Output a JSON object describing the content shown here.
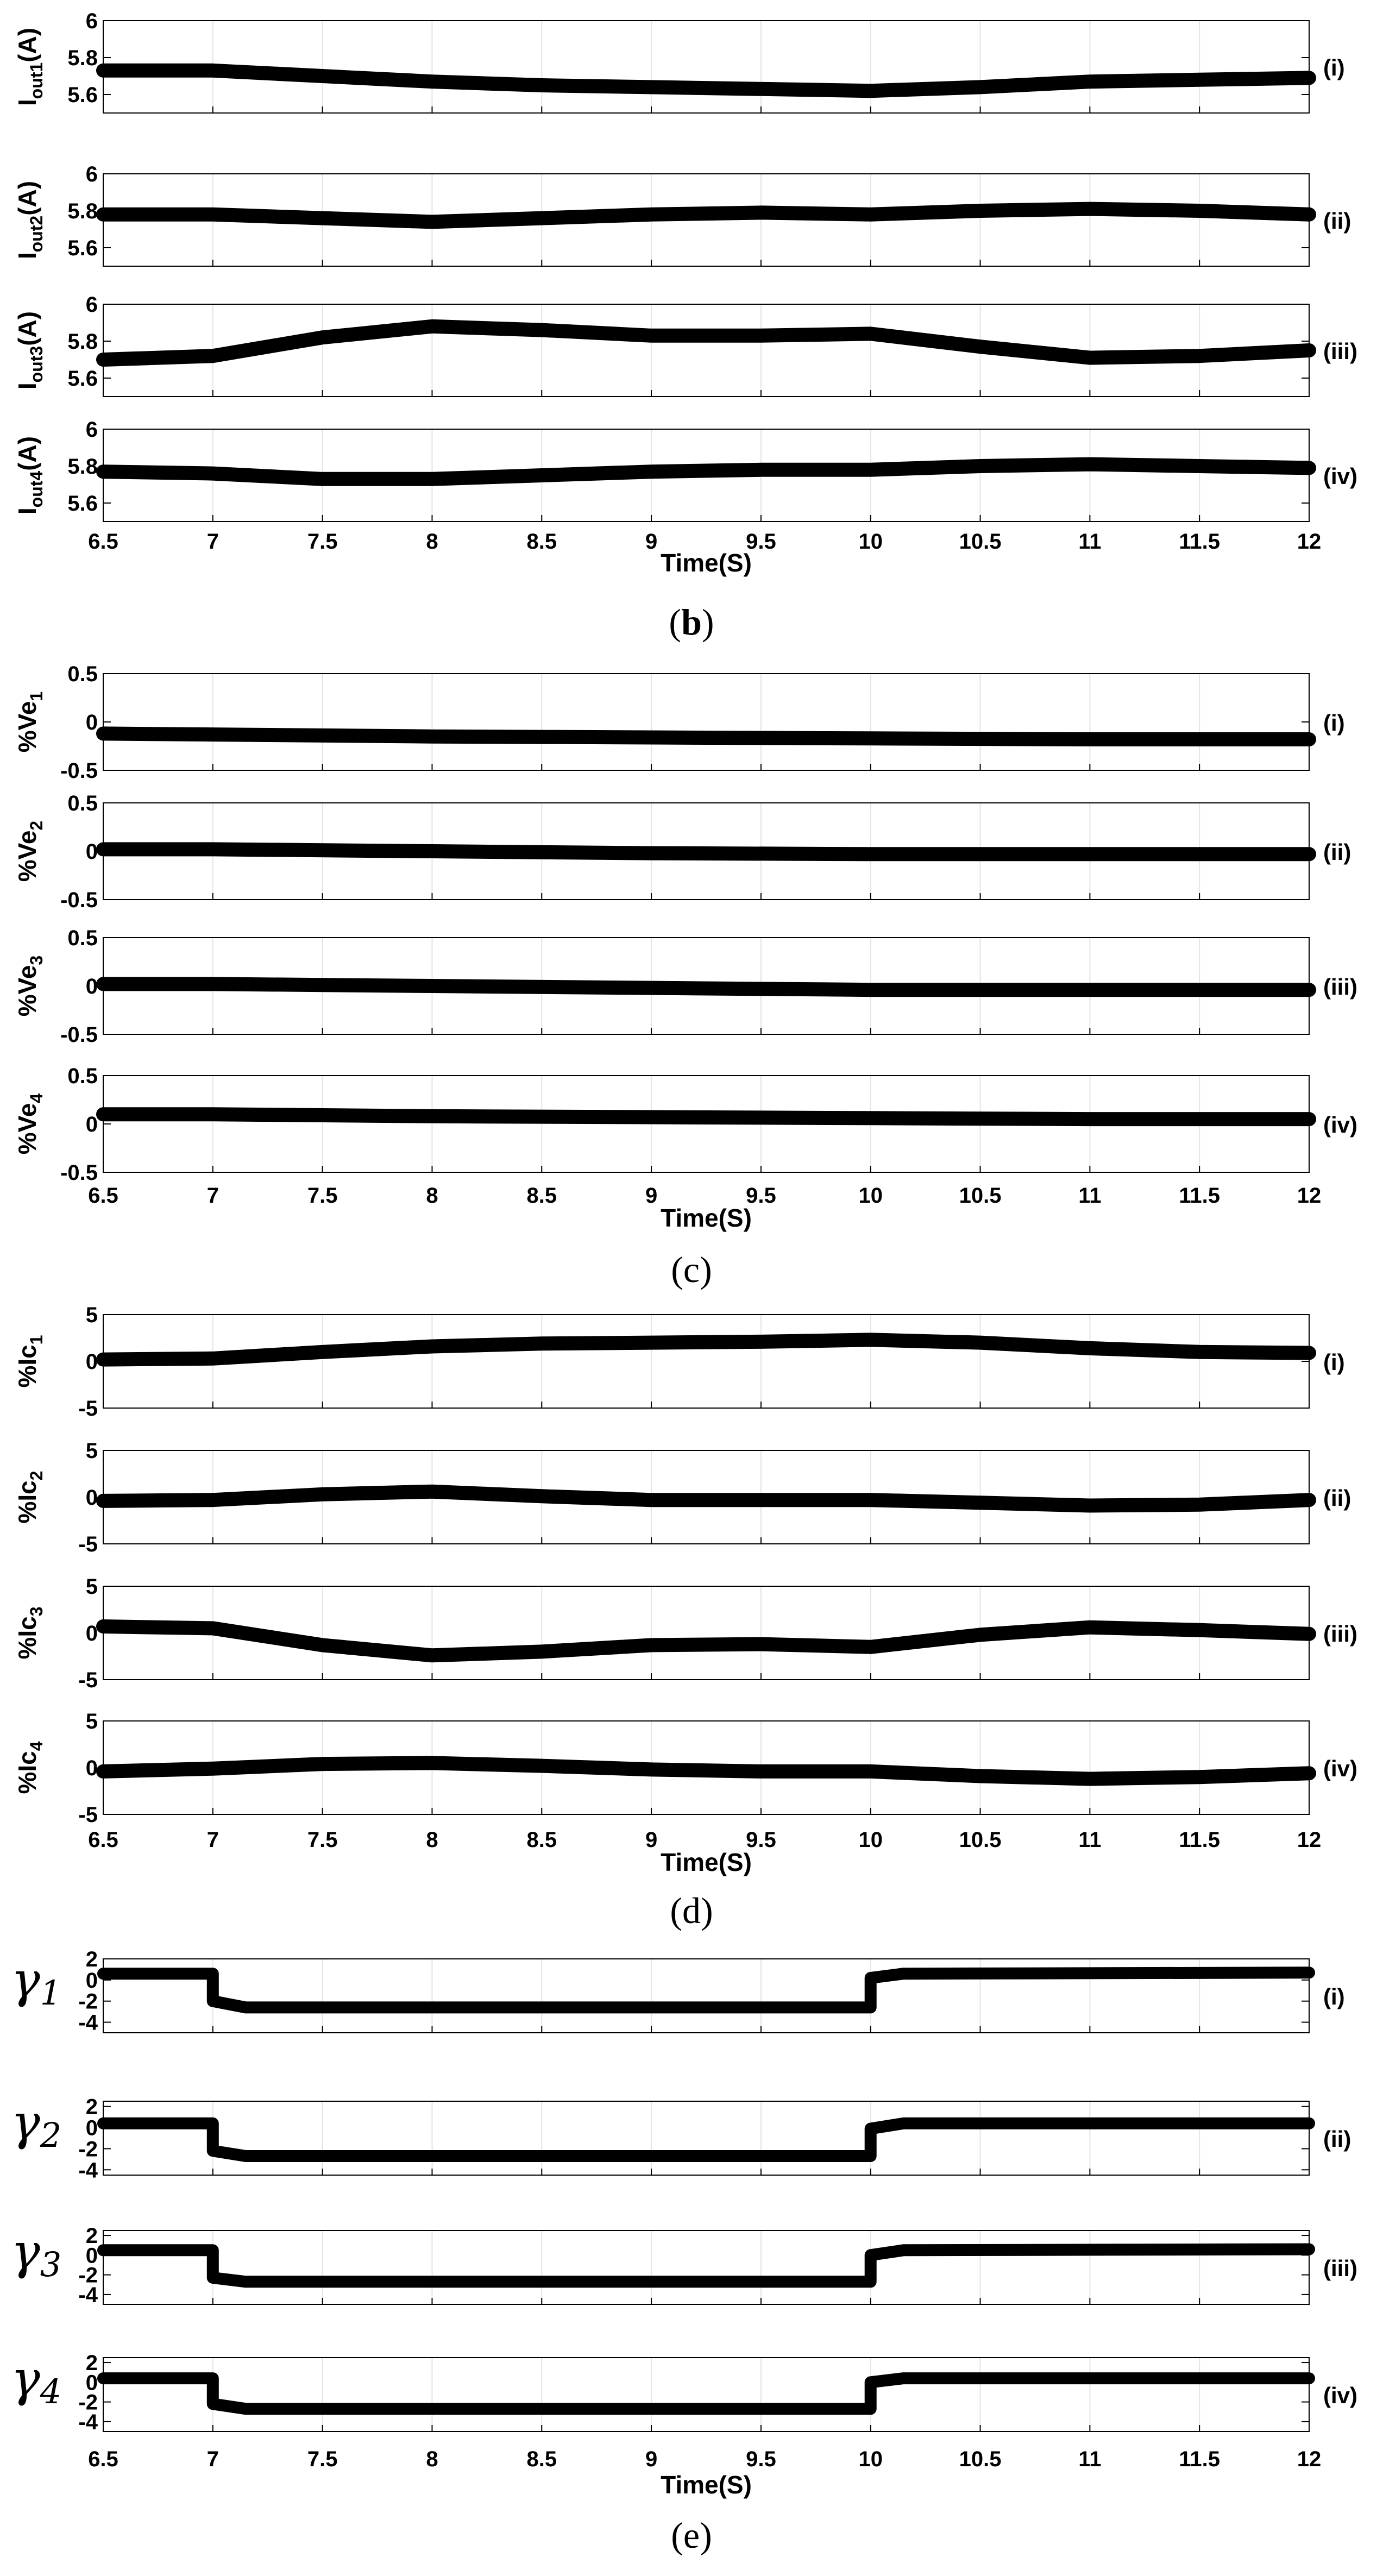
{
  "figure_groups": [
    {
      "caption_letter": "b",
      "paren_open": "(",
      "paren_close": ")"
    },
    {
      "caption_letter": "c",
      "paren_open": "(",
      "paren_close": ")"
    },
    {
      "caption_letter": "d",
      "paren_open": "(",
      "paren_close": ")"
    },
    {
      "caption_letter": "e",
      "paren_open": "(",
      "paren_close": ")"
    }
  ],
  "chart_data": [
    {
      "type": "line",
      "group": "b",
      "ylabel": "Iout1(A)",
      "ylabel_main": "I",
      "ylabel_sub": "out1",
      "ylabel_unit": "(A)",
      "ylim": [
        5.5,
        6
      ],
      "yticks": [
        "5.6",
        "5.8",
        "6"
      ],
      "panel_label": "(i)",
      "series": [
        {
          "x": [
            6.5,
            7,
            7.5,
            8,
            8.5,
            9,
            9.5,
            10,
            10.5,
            11,
            11.5,
            12
          ],
          "y": [
            5.73,
            5.73,
            5.7,
            5.67,
            5.65,
            5.64,
            5.63,
            5.62,
            5.64,
            5.67,
            5.68,
            5.69
          ]
        }
      ]
    },
    {
      "type": "line",
      "group": "b",
      "ylabel": "Iout2(A)",
      "ylabel_main": "I",
      "ylabel_sub": "out2",
      "ylabel_unit": "(A)",
      "ylim": [
        5.5,
        6
      ],
      "yticks": [
        "5.6",
        "5.8",
        "6"
      ],
      "panel_label": "(ii)",
      "series": [
        {
          "x": [
            6.5,
            7,
            7.5,
            8,
            8.5,
            9,
            9.5,
            10,
            10.5,
            11,
            11.5,
            12
          ],
          "y": [
            5.78,
            5.78,
            5.76,
            5.74,
            5.76,
            5.78,
            5.79,
            5.78,
            5.8,
            5.81,
            5.8,
            5.78
          ]
        }
      ]
    },
    {
      "type": "line",
      "group": "b",
      "ylabel": "Iout3(A)",
      "ylabel_main": "I",
      "ylabel_sub": "out3",
      "ylabel_unit": "(A)",
      "ylim": [
        5.5,
        6
      ],
      "yticks": [
        "5.6",
        "5.8",
        "6"
      ],
      "panel_label": "(iii)",
      "series": [
        {
          "x": [
            6.5,
            7,
            7.5,
            8,
            8.5,
            9,
            9.5,
            10,
            10.5,
            11,
            11.5,
            12
          ],
          "y": [
            5.7,
            5.72,
            5.82,
            5.88,
            5.86,
            5.83,
            5.83,
            5.84,
            5.77,
            5.71,
            5.72,
            5.75
          ]
        }
      ]
    },
    {
      "type": "line",
      "group": "b",
      "ylabel": "Iout4(A)",
      "ylabel_main": "I",
      "ylabel_sub": "out4",
      "ylabel_unit": "(A)",
      "ylim": [
        5.5,
        6
      ],
      "yticks": [
        "5.6",
        "5.8",
        "6"
      ],
      "panel_label": "(iv)",
      "xlabel": "Time(S)",
      "series": [
        {
          "x": [
            6.5,
            7,
            7.5,
            8,
            8.5,
            9,
            9.5,
            10,
            10.5,
            11,
            11.5,
            12
          ],
          "y": [
            5.77,
            5.76,
            5.73,
            5.73,
            5.75,
            5.77,
            5.78,
            5.78,
            5.8,
            5.81,
            5.8,
            5.79
          ]
        }
      ]
    },
    {
      "type": "line",
      "group": "c",
      "ylabel": "%Ve1",
      "ylabel_main": "%Ve",
      "ylabel_sub": "1",
      "ylim": [
        -0.5,
        0.5
      ],
      "yticks": [
        "-0.5",
        "0",
        "0.5"
      ],
      "panel_label": "(i)",
      "series": [
        {
          "x": [
            6.5,
            7,
            8,
            9,
            10,
            11,
            12
          ],
          "y": [
            -0.12,
            -0.13,
            -0.15,
            -0.16,
            -0.17,
            -0.18,
            -0.18
          ]
        }
      ]
    },
    {
      "type": "line",
      "group": "c",
      "ylabel": "%Ve2",
      "ylabel_main": "%Ve",
      "ylabel_sub": "2",
      "ylim": [
        -0.5,
        0.5
      ],
      "yticks": [
        "-0.5",
        "0",
        "0.5"
      ],
      "panel_label": "(ii)",
      "series": [
        {
          "x": [
            6.5,
            7,
            8,
            9,
            10,
            11,
            12
          ],
          "y": [
            0.02,
            0.02,
            0.0,
            -0.02,
            -0.03,
            -0.03,
            -0.03
          ]
        }
      ]
    },
    {
      "type": "line",
      "group": "c",
      "ylabel": "%Ve3",
      "ylabel_main": "%Ve",
      "ylabel_sub": "3",
      "ylim": [
        -0.5,
        0.5
      ],
      "yticks": [
        "-0.5",
        "0",
        "0.5"
      ],
      "panel_label": "(iii)",
      "series": [
        {
          "x": [
            6.5,
            7,
            8,
            9,
            10,
            11,
            12
          ],
          "y": [
            0.02,
            0.02,
            0.0,
            -0.02,
            -0.04,
            -0.04,
            -0.04
          ]
        }
      ]
    },
    {
      "type": "line",
      "group": "c",
      "ylabel": "%Ve4",
      "ylabel_main": "%Ve",
      "ylabel_sub": "4",
      "ylim": [
        -0.5,
        0.5
      ],
      "yticks": [
        "-0.5",
        "0",
        "0.5"
      ],
      "panel_label": "(iv)",
      "xlabel": "Time(S)",
      "series": [
        {
          "x": [
            6.5,
            7,
            8,
            9,
            10,
            11,
            12
          ],
          "y": [
            0.1,
            0.1,
            0.08,
            0.07,
            0.06,
            0.05,
            0.05
          ]
        }
      ]
    },
    {
      "type": "line",
      "group": "d",
      "ylabel": "%Ic1",
      "ylabel_main": "%Ic",
      "ylabel_sub": "1",
      "ylim": [
        -5,
        5
      ],
      "yticks": [
        "-5",
        "0",
        "5"
      ],
      "panel_label": "(i)",
      "series": [
        {
          "x": [
            6.5,
            7,
            7.5,
            8,
            8.5,
            9,
            9.5,
            10,
            10.5,
            11,
            11.5,
            12
          ],
          "y": [
            0.2,
            0.3,
            1.0,
            1.6,
            1.9,
            2.0,
            2.1,
            2.3,
            2.0,
            1.4,
            1.0,
            0.9
          ]
        }
      ]
    },
    {
      "type": "line",
      "group": "d",
      "ylabel": "%Ic2",
      "ylabel_main": "%Ic",
      "ylabel_sub": "2",
      "ylim": [
        -5,
        5
      ],
      "yticks": [
        "-5",
        "0",
        "5"
      ],
      "panel_label": "(ii)",
      "series": [
        {
          "x": [
            6.5,
            7,
            7.5,
            8,
            8.5,
            9,
            9.5,
            10,
            10.5,
            11,
            11.5,
            12
          ],
          "y": [
            -0.4,
            -0.3,
            0.3,
            0.6,
            0.1,
            -0.3,
            -0.3,
            -0.3,
            -0.6,
            -0.9,
            -0.8,
            -0.3
          ]
        }
      ]
    },
    {
      "type": "line",
      "group": "d",
      "ylabel": "%Ic3",
      "ylabel_main": "%Ic",
      "ylabel_sub": "3",
      "ylim": [
        -5,
        5
      ],
      "yticks": [
        "-5",
        "0",
        "5"
      ],
      "panel_label": "(iii)",
      "series": [
        {
          "x": [
            6.5,
            7,
            7.5,
            8,
            8.5,
            9,
            9.5,
            10,
            10.5,
            11,
            11.5,
            12
          ],
          "y": [
            0.7,
            0.5,
            -1.3,
            -2.4,
            -2.0,
            -1.3,
            -1.2,
            -1.5,
            -0.2,
            0.6,
            0.3,
            -0.1
          ]
        }
      ]
    },
    {
      "type": "line",
      "group": "d",
      "ylabel": "%Ic4",
      "ylabel_main": "%Ic",
      "ylabel_sub": "4",
      "ylim": [
        -5,
        5
      ],
      "yticks": [
        "-5",
        "0",
        "5"
      ],
      "panel_label": "(iv)",
      "xlabel": "Time(S)",
      "series": [
        {
          "x": [
            6.5,
            7,
            7.5,
            8,
            8.5,
            9,
            9.5,
            10,
            10.5,
            11,
            11.5,
            12
          ],
          "y": [
            -0.4,
            -0.1,
            0.4,
            0.5,
            0.2,
            -0.2,
            -0.4,
            -0.4,
            -0.9,
            -1.2,
            -1.0,
            -0.6
          ]
        }
      ]
    },
    {
      "type": "line",
      "group": "e",
      "ylabel": "γ1",
      "ylabel_main": "γ",
      "ylabel_sub": "1",
      "ylim": [
        -5,
        2
      ],
      "yticks": [
        "-4",
        "-2",
        "0",
        "2"
      ],
      "panel_label": "(i)",
      "series": [
        {
          "x": [
            6.5,
            7,
            7,
            7.15,
            10,
            10,
            10.15,
            12
          ],
          "y": [
            0.6,
            0.6,
            -2.0,
            -2.6,
            -2.6,
            0.2,
            0.6,
            0.7
          ]
        }
      ]
    },
    {
      "type": "line",
      "group": "e",
      "ylabel": "γ2",
      "ylabel_main": "γ",
      "ylabel_sub": "2",
      "ylim": [
        -4.5,
        2.5
      ],
      "yticks": [
        "-4",
        "-2",
        "0",
        "2"
      ],
      "panel_label": "(ii)",
      "series": [
        {
          "x": [
            6.5,
            7,
            7,
            7.15,
            10,
            10,
            10.15,
            12
          ],
          "y": [
            0.4,
            0.4,
            -2.2,
            -2.7,
            -2.7,
            -0.1,
            0.4,
            0.4
          ]
        }
      ]
    },
    {
      "type": "line",
      "group": "e",
      "ylabel": "γ3",
      "ylabel_main": "γ",
      "ylabel_sub": "3",
      "ylim": [
        -5,
        2.5
      ],
      "yticks": [
        "-4",
        "-2",
        "0",
        "2"
      ],
      "panel_label": "(iii)",
      "series": [
        {
          "x": [
            6.5,
            7,
            7,
            7.15,
            10,
            10,
            10.15,
            12
          ],
          "y": [
            0.5,
            0.5,
            -2.3,
            -2.7,
            -2.7,
            0.0,
            0.5,
            0.6
          ]
        }
      ]
    },
    {
      "type": "line",
      "group": "e",
      "ylabel": "γ4",
      "ylabel_main": "γ",
      "ylabel_sub": "4",
      "ylim": [
        -5,
        2.5
      ],
      "yticks": [
        "-4",
        "-2",
        "0",
        "2"
      ],
      "panel_label": "(iv)",
      "xlabel": "Time(S)",
      "series": [
        {
          "x": [
            6.5,
            7,
            7,
            7.15,
            10,
            10,
            10.15,
            12
          ],
          "y": [
            0.4,
            0.4,
            -2.2,
            -2.7,
            -2.7,
            0.0,
            0.4,
            0.4
          ]
        }
      ]
    }
  ],
  "x_axis": {
    "xlim": [
      6.5,
      12
    ],
    "ticks": [
      "6.5",
      "7",
      "7.5",
      "8",
      "8.5",
      "9",
      "9.5",
      "10",
      "10.5",
      "11",
      "11.5",
      "12"
    ]
  },
  "style": {
    "line_color": "#000000",
    "frame_color": "#000000",
    "grid_color": "#e4e4e4",
    "background": "#ffffff"
  }
}
